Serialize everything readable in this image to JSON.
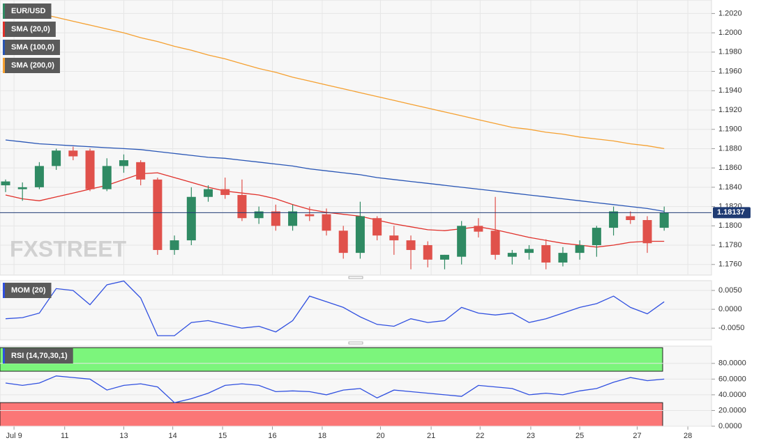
{
  "chart_data": [
    {
      "type": "candlestick",
      "watermark": "FXSTREET",
      "ylim": [
        1.1749,
        1.2034
      ],
      "yticks": [
        {
          "value": 1.202,
          "label": "1.2020"
        },
        {
          "value": 1.2,
          "label": "1.2000"
        },
        {
          "value": 1.198,
          "label": "1.1980"
        },
        {
          "value": 1.196,
          "label": "1.1960"
        },
        {
          "value": 1.194,
          "label": "1.1940"
        },
        {
          "value": 1.192,
          "label": "1.1920"
        },
        {
          "value": 1.19,
          "label": "1.1900"
        },
        {
          "value": 1.188,
          "label": "1.1880"
        },
        {
          "value": 1.186,
          "label": "1.1860"
        },
        {
          "value": 1.184,
          "label": "1.1840"
        },
        {
          "value": 1.182,
          "label": "1.1820"
        },
        {
          "value": 1.18,
          "label": "1.1800"
        },
        {
          "value": 1.178,
          "label": "1.1780"
        },
        {
          "value": 1.176,
          "label": "1.1760"
        }
      ],
      "xlim": [
        -0.33,
        41.8
      ],
      "xticks": [
        {
          "value": 0.5,
          "label": "Jul 9"
        },
        {
          "value": 3.5,
          "label": "11"
        },
        {
          "value": 7,
          "label": "13"
        },
        {
          "value": 9.9,
          "label": "14"
        },
        {
          "value": 12.85,
          "label": "15"
        },
        {
          "value": 15.8,
          "label": "16"
        },
        {
          "value": 18.75,
          "label": "18"
        },
        {
          "value": 22.2,
          "label": "20"
        },
        {
          "value": 25.2,
          "label": "21"
        },
        {
          "value": 28.1,
          "label": "22"
        },
        {
          "value": 31.1,
          "label": "23"
        },
        {
          "value": 34,
          "label": "25"
        },
        {
          "value": 37.4,
          "label": "27"
        },
        {
          "value": 40.4,
          "label": "28"
        }
      ],
      "grid": true,
      "series": [
        {
          "name": "EUR/USD",
          "up_color": "#2f8a63",
          "down_color": "#e0514b",
          "color": "#2f8a63",
          "open": [
            1.1842,
            1.1838,
            1.184,
            1.1862,
            1.1878,
            1.1878,
            1.1838,
            1.1862,
            1.1866,
            1.1848,
            1.1775,
            1.1785,
            1.183,
            1.1838,
            1.1832,
            1.1808,
            1.1815,
            1.18,
            1.1812,
            1.1812,
            1.1795,
            1.1772,
            1.1808,
            1.179,
            1.1785,
            1.178,
            1.1765,
            1.1768,
            1.18,
            1.1795,
            1.1768,
            1.1772,
            1.178,
            1.1762,
            1.1772,
            1.178,
            1.1798,
            1.181,
            1.1806,
            1.1798
          ],
          "high": [
            1.1848,
            1.1845,
            1.1866,
            1.188,
            1.1882,
            1.188,
            1.187,
            1.1874,
            1.1868,
            1.185,
            1.179,
            1.184,
            1.1842,
            1.185,
            1.1848,
            1.182,
            1.1822,
            1.1822,
            1.182,
            1.1818,
            1.18,
            1.1825,
            1.181,
            1.18,
            1.179,
            1.1784,
            1.177,
            1.1805,
            1.1808,
            1.183,
            1.1775,
            1.178,
            1.1786,
            1.1778,
            1.1785,
            1.18,
            1.182,
            1.1815,
            1.181,
            1.182
          ],
          "low": [
            1.1835,
            1.1826,
            1.1838,
            1.1858,
            1.1868,
            1.1836,
            1.1836,
            1.1855,
            1.1842,
            1.177,
            1.177,
            1.178,
            1.1825,
            1.1828,
            1.1805,
            1.1802,
            1.1795,
            1.1795,
            1.1805,
            1.179,
            1.1766,
            1.1766,
            1.1785,
            1.177,
            1.1755,
            1.1757,
            1.1755,
            1.176,
            1.1788,
            1.1765,
            1.176,
            1.1765,
            1.1755,
            1.1758,
            1.1765,
            1.1768,
            1.179,
            1.1802,
            1.1772,
            1.1795
          ],
          "close": [
            1.1846,
            1.184,
            1.1862,
            1.1878,
            1.1872,
            1.1838,
            1.1862,
            1.1868,
            1.1848,
            1.1775,
            1.1785,
            1.183,
            1.1838,
            1.1832,
            1.1808,
            1.1815,
            1.18,
            1.1815,
            1.181,
            1.1795,
            1.1772,
            1.181,
            1.179,
            1.1785,
            1.1775,
            1.1765,
            1.177,
            1.18,
            1.1794,
            1.177,
            1.1772,
            1.1776,
            1.1762,
            1.1772,
            1.178,
            1.1798,
            1.1815,
            1.1806,
            1.1782,
            1.18137
          ]
        },
        {
          "name": "SMA (20,0)",
          "color": "#e0302a",
          "values": [
            1.1832,
            1.1828,
            1.1826,
            1.183,
            1.1834,
            1.1838,
            1.1842,
            1.1848,
            1.1854,
            1.1855,
            1.185,
            1.1845,
            1.184,
            1.1836,
            1.1834,
            1.1832,
            1.1828,
            1.1822,
            1.1817,
            1.1814,
            1.1812,
            1.181,
            1.1806,
            1.1802,
            1.1799,
            1.1796,
            1.1795,
            1.1797,
            1.1799,
            1.1796,
            1.1792,
            1.1788,
            1.1785,
            1.1782,
            1.178,
            1.1778,
            1.178,
            1.1783,
            1.1784,
            1.1784
          ]
        },
        {
          "name": "SMA (100,0)",
          "color": "#2855b5",
          "values": [
            1.1889,
            1.1887,
            1.1885,
            1.1884,
            1.1883,
            1.1882,
            1.1881,
            1.188,
            1.1879,
            1.1877,
            1.1875,
            1.1873,
            1.1871,
            1.187,
            1.1868,
            1.1866,
            1.1864,
            1.1862,
            1.1859,
            1.1857,
            1.1855,
            1.1853,
            1.185,
            1.1848,
            1.1846,
            1.1844,
            1.1842,
            1.184,
            1.1838,
            1.1836,
            1.1834,
            1.1832,
            1.183,
            1.1828,
            1.1826,
            1.1824,
            1.1822,
            1.182,
            1.1818,
            1.1815
          ]
        },
        {
          "name": "SMA (200,0)",
          "color": "#f5a030",
          "values": [
            1.2026,
            1.2023,
            1.202,
            1.2016,
            1.2012,
            1.2008,
            1.2004,
            1.2,
            1.1995,
            1.1991,
            1.1986,
            1.1982,
            1.1977,
            1.1973,
            1.1968,
            1.1963,
            1.1959,
            1.1954,
            1.195,
            1.1946,
            1.1942,
            1.1938,
            1.1934,
            1.193,
            1.1926,
            1.1922,
            1.1918,
            1.1914,
            1.191,
            1.1906,
            1.1902,
            1.19,
            1.1897,
            1.1895,
            1.1892,
            1.189,
            1.1888,
            1.1885,
            1.1883,
            1.188
          ]
        }
      ]
    },
    {
      "type": "line",
      "title": "MOM (20)",
      "color": "#3050e0",
      "ylim": [
        -0.0081,
        0.0076
      ],
      "yticks": [
        {
          "value": 0.005,
          "label": "0.0050"
        },
        {
          "value": 0,
          "label": "0.0000"
        },
        {
          "value": -0.005,
          "label": "-0.0050"
        }
      ],
      "values": [
        -0.0025,
        -0.0022,
        -0.001,
        0.0055,
        0.005,
        0.0012,
        0.0065,
        0.0075,
        0.003,
        -0.007,
        -0.007,
        -0.0035,
        -0.003,
        -0.004,
        -0.005,
        -0.0045,
        -0.006,
        -0.003,
        0.0035,
        0.002,
        0.0005,
        -0.002,
        -0.004,
        -0.0045,
        -0.0025,
        -0.0035,
        -0.003,
        0.0005,
        -0.001,
        -0.0015,
        -0.001,
        -0.0035,
        -0.0025,
        -0.001,
        0.0005,
        0.0015,
        0.0035,
        0.0005,
        -0.0012,
        0.002
      ],
      "grid": true
    },
    {
      "type": "line",
      "title": "RSI (14,70,30,1)",
      "color": "#3050e0",
      "ylim": [
        0,
        102
      ],
      "yticks": [
        {
          "value": 80,
          "label": "80.0000"
        },
        {
          "value": 60,
          "label": "60.0000"
        },
        {
          "value": 40,
          "label": "40.0000"
        },
        {
          "value": 20,
          "label": "20.0000"
        },
        {
          "value": 0,
          "label": "0.0000"
        }
      ],
      "bands": [
        {
          "from": 70,
          "to": 100,
          "color": "#7cf57c"
        },
        {
          "from": 0,
          "to": 30,
          "color": "#fb7676"
        }
      ],
      "values": [
        55,
        52,
        55,
        64,
        62,
        60,
        46,
        52,
        54,
        50,
        30,
        35,
        42,
        52,
        54,
        52,
        44,
        45,
        44,
        40,
        46,
        48,
        36,
        46,
        44,
        42,
        40,
        38,
        52,
        50,
        48,
        40,
        42,
        40,
        45,
        48,
        56,
        62,
        58,
        60
      ],
      "grid": true
    }
  ]
}
